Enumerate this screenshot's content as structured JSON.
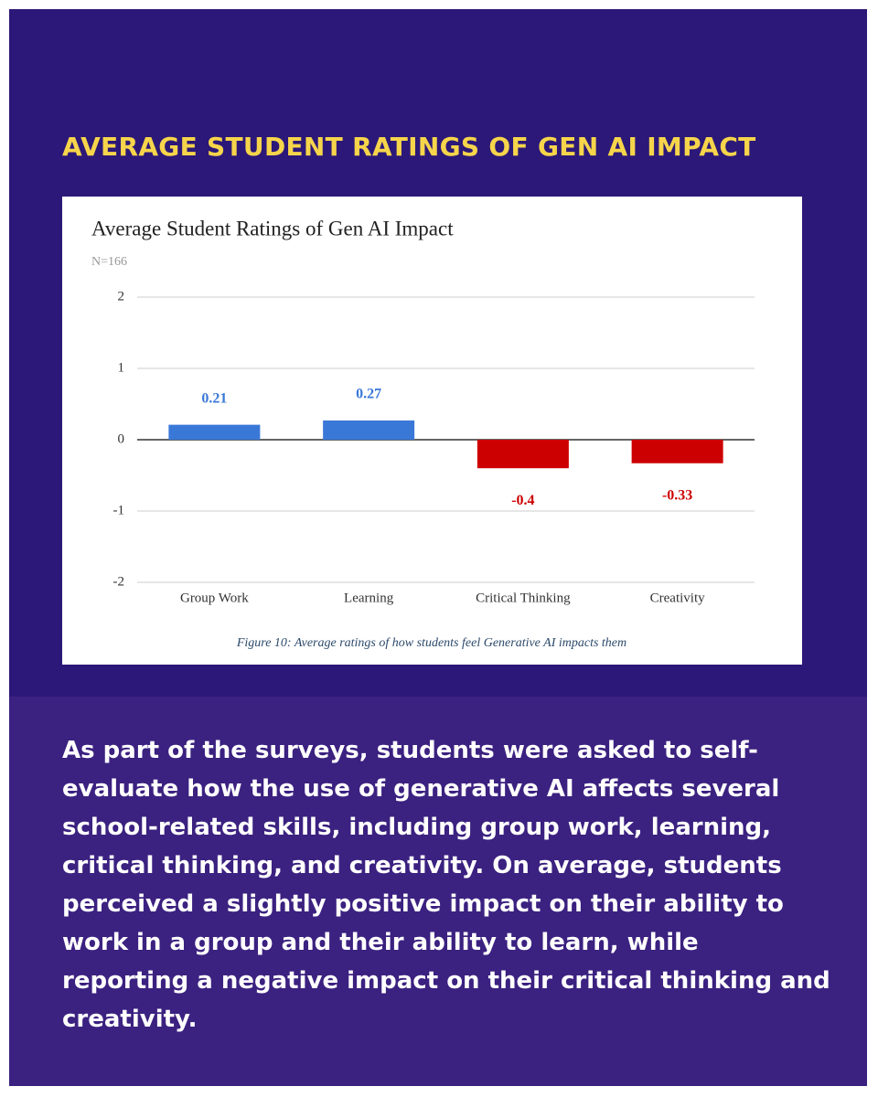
{
  "header": {
    "title": "AVERAGE STUDENT RATINGS OF GEN AI IMPACT"
  },
  "chart_data": {
    "type": "bar",
    "title": "Average Student Ratings of Gen AI Impact",
    "subtitle": "N=166",
    "categories": [
      "Group Work",
      "Learning",
      "Critical Thinking",
      "Creativity"
    ],
    "values": [
      0.21,
      0.27,
      -0.4,
      -0.33
    ],
    "colors": [
      "#3a78d8",
      "#3a78d8",
      "#cc0000",
      "#cc0000"
    ],
    "ylim": [
      -2,
      2
    ],
    "yticks": [
      -2,
      -1,
      0,
      1,
      2
    ],
    "grid": true,
    "caption": "Figure 10: Average ratings of how students feel Generative AI impacts them"
  },
  "body": {
    "text": "As part of the surveys, students were asked to self-evaluate how the use of generative AI affects several school-related skills, including group work, learning, critical thinking, and creativity. On average, students perceived a slightly positive impact on their ability to work in a group and their ability to learn, while reporting a negative impact on their critical thinking and creativity."
  }
}
